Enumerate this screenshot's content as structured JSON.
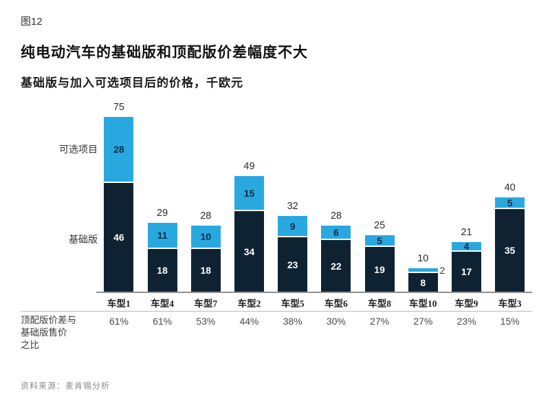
{
  "figure": {
    "tag": "图12",
    "title": "纯电动汽车的基础版和顶配版价差幅度不大",
    "subtitle": "基础版与加入可选项目后的价格，千欧元",
    "source": "资料来源：麦肯锡分析"
  },
  "legend": {
    "optional_label": "可选项目",
    "base_label": "基础版"
  },
  "percent_row_label": "顶配版价差与\n基础版售价\n之比",
  "colors": {
    "optional_fill": "#29A8E0",
    "base_fill": "#0E2232",
    "label_on_optional": "#0D2B45",
    "label_on_base": "#FFFFFF"
  },
  "chart_data": {
    "type": "bar",
    "stacked": true,
    "title": "纯电动汽车的基础版和顶配版价差幅度不大",
    "subtitle": "基础版与加入可选项目后的价格，千欧元",
    "unit": "千欧元",
    "ylim": [
      0,
      75
    ],
    "categories": [
      "车型1",
      "车型4",
      "车型7",
      "车型2",
      "车型5",
      "车型6",
      "车型8",
      "车型10",
      "车型9",
      "车型3"
    ],
    "series": [
      {
        "name": "基础版",
        "values": [
          46,
          18,
          18,
          34,
          23,
          22,
          19,
          8,
          17,
          35
        ]
      },
      {
        "name": "可选项目",
        "values": [
          28,
          11,
          10,
          15,
          9,
          6,
          5,
          2,
          4,
          5
        ]
      }
    ],
    "totals": [
      75,
      29,
      28,
      49,
      32,
      28,
      25,
      10,
      21,
      40
    ],
    "percent_row": {
      "label": "顶配版价差与基础版售价之比",
      "values": [
        "61%",
        "61%",
        "53%",
        "44%",
        "38%",
        "30%",
        "27%",
        "27%",
        "23%",
        "15%"
      ]
    }
  }
}
